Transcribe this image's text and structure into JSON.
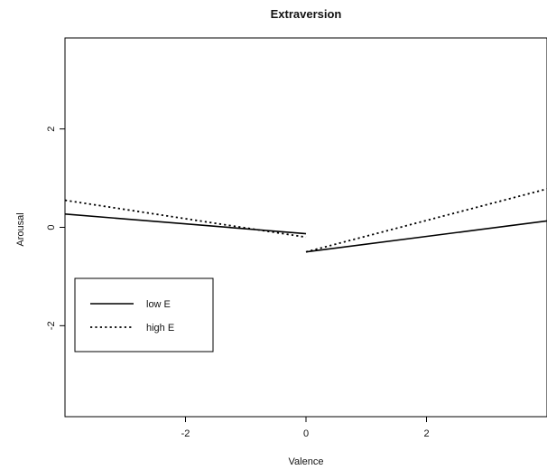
{
  "chart_data": {
    "type": "line",
    "title": "Extraversion",
    "xlabel": "Valence",
    "ylabel": "Arousal",
    "xlim": [
      -4,
      4
    ],
    "ylim": [
      -3.85,
      3.85
    ],
    "xticks": [
      -2,
      0,
      2
    ],
    "yticks": [
      -2,
      0,
      2
    ],
    "grid": false,
    "legend_position": "left",
    "series": [
      {
        "name": "low E",
        "line_style": "solid",
        "color": "#000000",
        "segments": [
          {
            "x": [
              -4,
              0
            ],
            "y": [
              0.27,
              -0.13
            ]
          },
          {
            "x": [
              0,
              4
            ],
            "y": [
              -0.5,
              0.13
            ]
          }
        ]
      },
      {
        "name": "high E",
        "line_style": "dotted",
        "color": "#000000",
        "segments": [
          {
            "x": [
              -4,
              0
            ],
            "y": [
              0.55,
              -0.2
            ]
          },
          {
            "x": [
              0,
              4
            ],
            "y": [
              -0.5,
              0.78
            ]
          }
        ]
      }
    ]
  }
}
